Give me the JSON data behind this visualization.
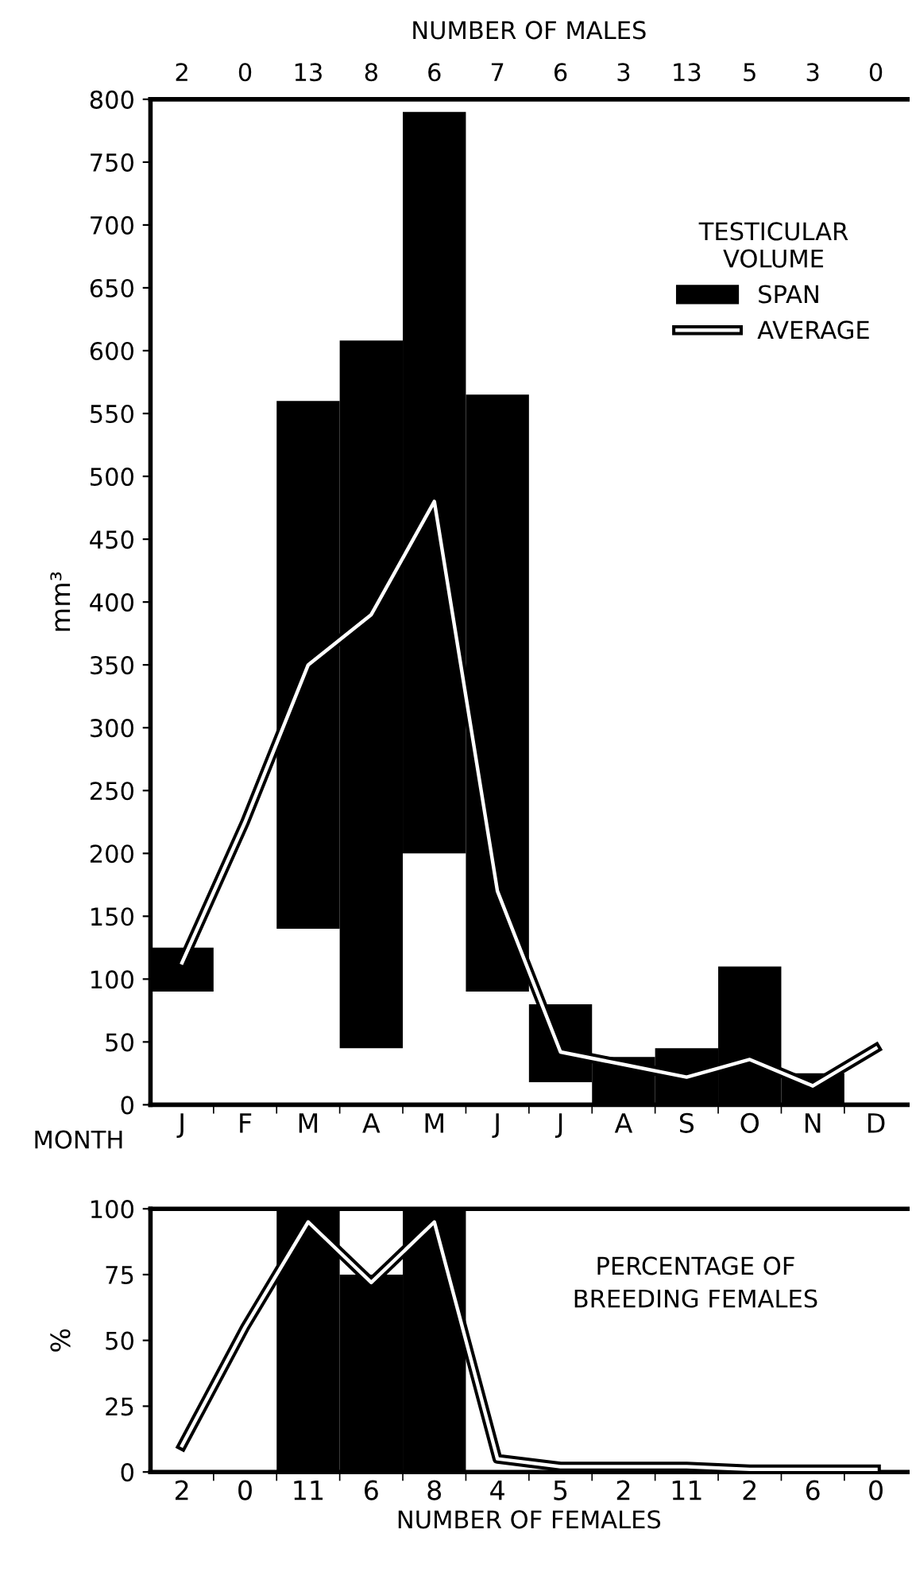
{
  "chart_data": [
    {
      "type": "bar",
      "categories": [
        "J",
        "F",
        "M",
        "A",
        "M",
        "J",
        "J",
        "A",
        "S",
        "O",
        "N",
        "D"
      ],
      "xlabel": "MONTH",
      "ylabel": "mm³",
      "x2label": "NUMBER OF MALES",
      "annotations": [
        "2",
        "0",
        "13",
        "8",
        "6",
        "7",
        "6",
        "3",
        "13",
        "5",
        "3",
        "0"
      ],
      "ylim": [
        0,
        800
      ],
      "yticks": [
        0,
        50,
        100,
        150,
        200,
        250,
        300,
        350,
        400,
        450,
        500,
        550,
        600,
        650,
        700,
        750,
        800
      ],
      "legend": "top right",
      "legend_title": "TESTICULAR\nVOLUME",
      "grid": false,
      "series": [
        {
          "name": "SPAN",
          "color": "#000000",
          "base": [
            90,
            null,
            140,
            45,
            200,
            90,
            18,
            0,
            0,
            0,
            0,
            null
          ],
          "values": [
            35,
            null,
            420,
            563,
            590,
            475,
            62,
            38,
            45,
            110,
            25,
            null
          ]
        },
        {
          "name": "AVERAGE",
          "type": "line",
          "color": "#ffffff",
          "values": [
            113,
            225,
            350,
            390,
            480,
            170,
            42,
            32,
            22,
            36,
            15,
            45
          ]
        }
      ]
    },
    {
      "type": "bar",
      "title": "PERCENTAGE OF\nBREEDING FEMALES",
      "categories": [
        "2",
        "0",
        "11",
        "6",
        "8",
        "4",
        "5",
        "2",
        "11",
        "2",
        "6",
        "0"
      ],
      "xlabel": "NUMBER OF FEMALES",
      "ylabel": "%",
      "ylim": [
        0,
        100
      ],
      "yticks": [
        0,
        25,
        50,
        75,
        100
      ],
      "grid": false,
      "series": [
        {
          "color": "#000000",
          "values": [
            null,
            null,
            100,
            75,
            100,
            null,
            null,
            null,
            null,
            null,
            null,
            null
          ]
        },
        {
          "type": "line",
          "color": "#ffffff",
          "values": [
            10,
            55,
            95,
            72,
            95,
            5,
            2,
            2,
            2,
            1,
            1,
            1
          ]
        }
      ]
    }
  ]
}
